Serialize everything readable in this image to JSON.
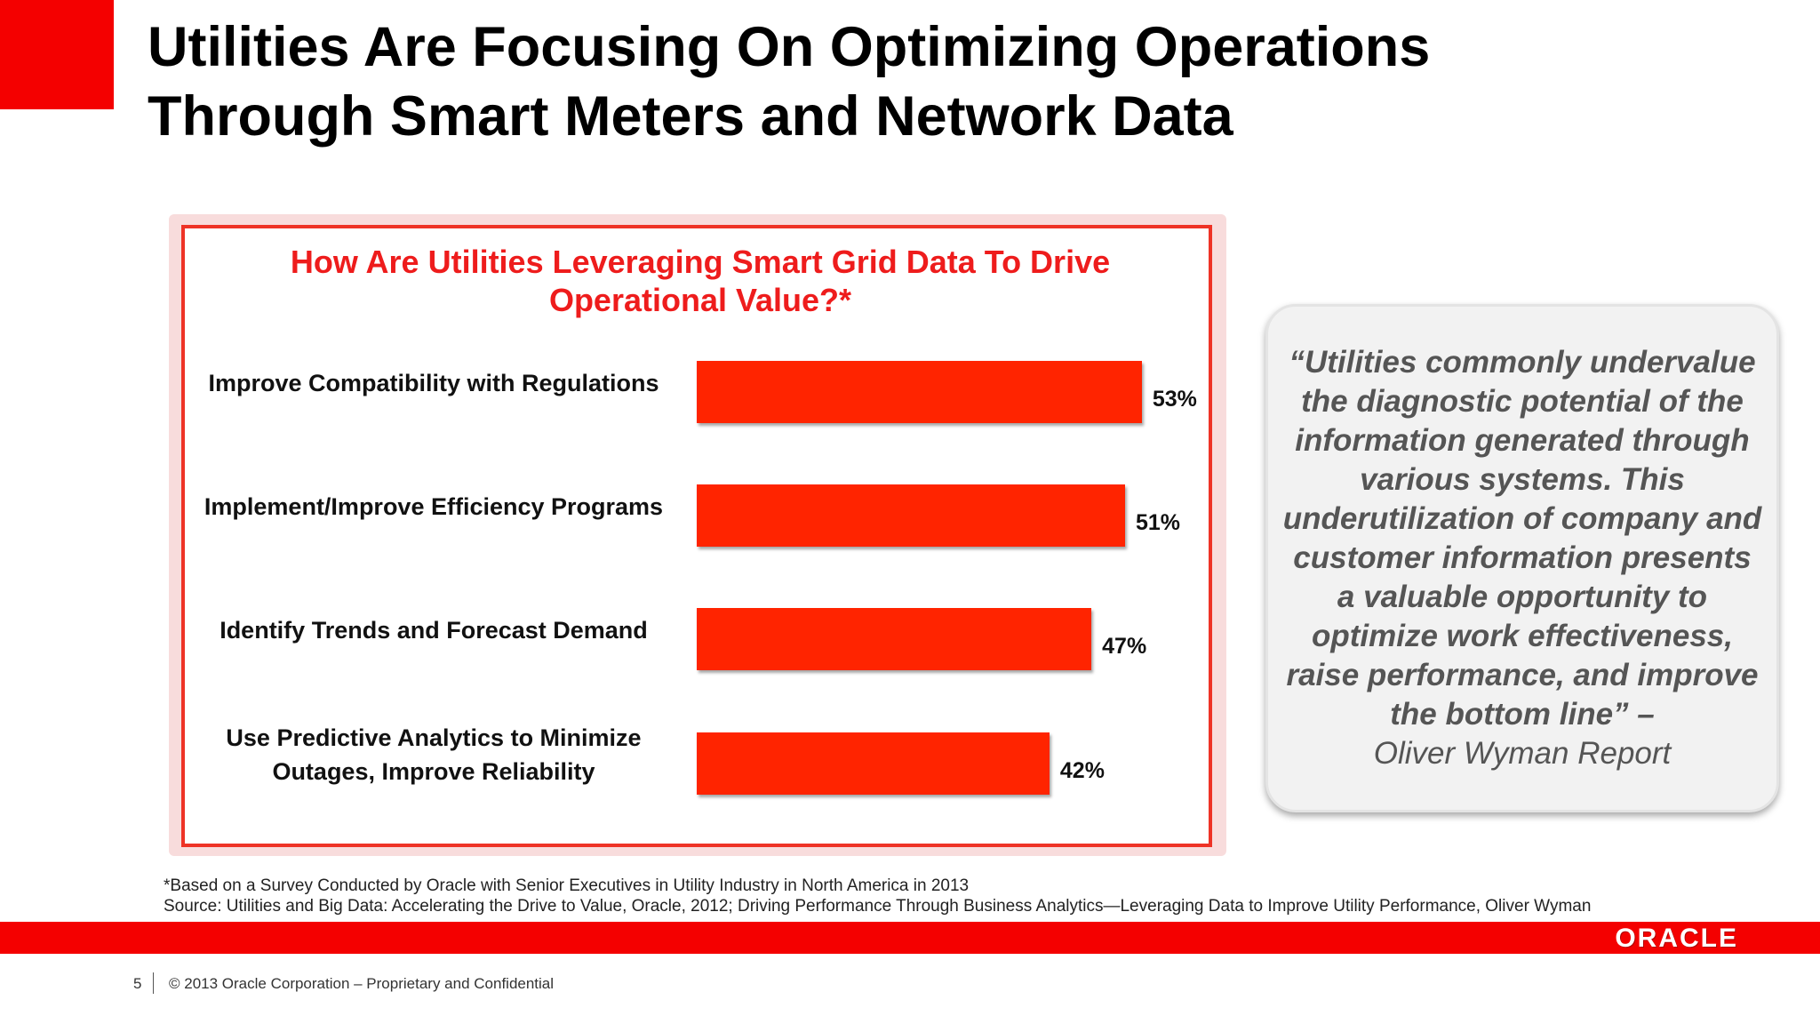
{
  "slide": {
    "title_line1": "Utilities Are Focusing On Optimizing Operations",
    "title_line2": "Through Smart Meters and Network Data"
  },
  "chart_data": {
    "type": "bar",
    "orientation": "horizontal",
    "title": "How Are Utilities Leveraging Smart Grid Data To Drive Operational Value?*",
    "title_line1": "How Are Utilities Leveraging Smart Grid Data To Drive",
    "title_line2": "Operational Value?*",
    "categories": [
      "Improve Compatibility with Regulations",
      "Implement/Improve Efficiency Programs",
      "Identify Trends and Forecast Demand",
      "Use Predictive Analytics to Minimize Outages, Improve Reliability"
    ],
    "category_lines": [
      [
        "Improve Compatibility with Regulations"
      ],
      [
        "Implement/Improve Efficiency Programs"
      ],
      [
        "Identify Trends and Forecast Demand"
      ],
      [
        "Use Predictive Analytics to Minimize",
        "Outages, Improve Reliability"
      ]
    ],
    "values": [
      53,
      51,
      47,
      42
    ],
    "value_labels": [
      "53%",
      "51%",
      "47%",
      "42%"
    ],
    "unit": "%",
    "bar_color": "#ff2400",
    "grid": false,
    "legend": "none"
  },
  "quote": {
    "text": "“Utilities commonly undervalue the diagnostic potential of the information generated through various systems. This underutilization of company and customer information presents a valuable opportunity to optimize work effectiveness, raise performance, and improve the bottom line” –",
    "source": "Oliver Wyman Report"
  },
  "footnote": {
    "line1": "*Based on a Survey Conducted by Oracle with Senior Executives in Utility Industry in North America in 2013",
    "line2": "Source: Utilities and Big Data: Accelerating the Drive to Value, Oracle, 2012; Driving Performance Through Business Analytics—Leveraging Data to Improve Utility Performance, Oliver Wyman"
  },
  "footer": {
    "page_number": "5",
    "copyright": "© 2013 Oracle Corporation – Proprietary and Confidential",
    "logo_text": "ORACLE"
  },
  "colors": {
    "brand_red": "#f40000",
    "chart_title_red": "#ee1c1c",
    "quote_text": "#555555"
  }
}
